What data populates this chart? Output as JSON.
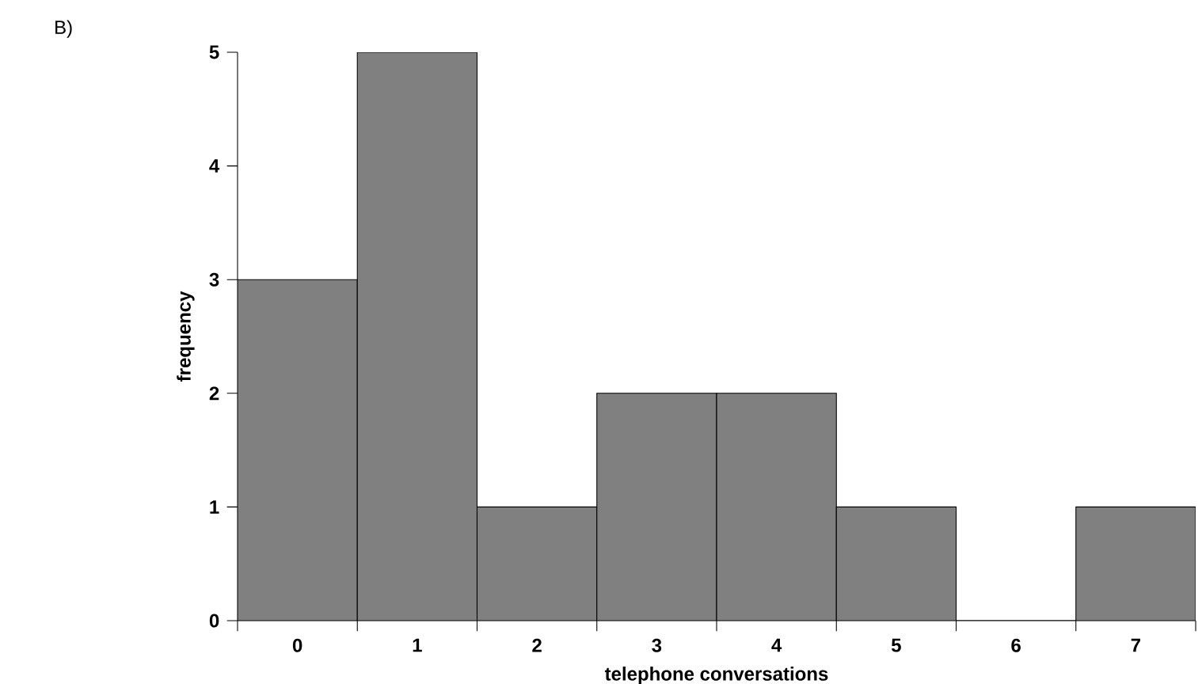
{
  "chart_data": {
    "type": "bar",
    "title": "B)",
    "xlabel": "telephone conversations",
    "ylabel": "frequency",
    "categories": [
      "0",
      "1",
      "2",
      "3",
      "4",
      "5",
      "6",
      "7"
    ],
    "values": [
      3,
      5,
      1,
      2,
      2,
      1,
      0,
      1
    ],
    "color": "#808080",
    "ylim": [
      0,
      5
    ],
    "yticks": [
      0,
      1,
      2,
      3,
      4,
      5
    ]
  }
}
